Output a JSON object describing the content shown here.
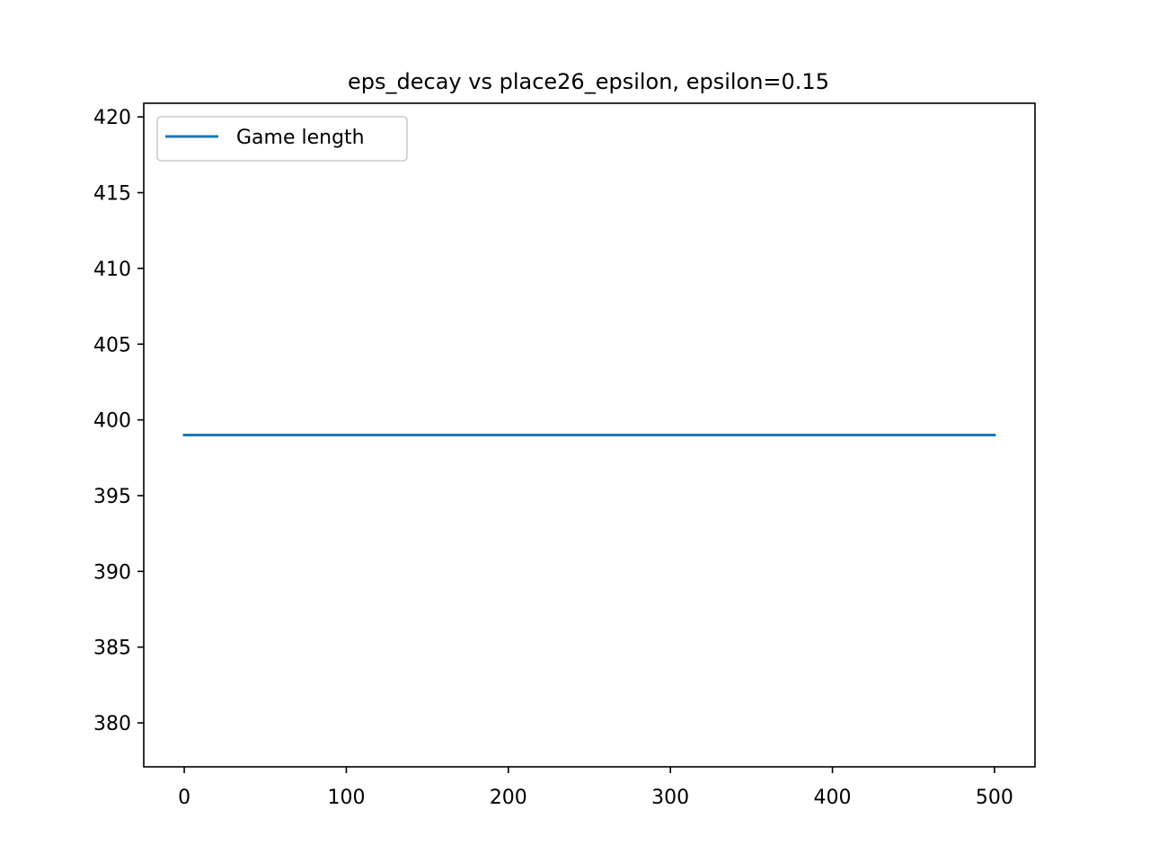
{
  "chart_data": {
    "type": "line",
    "title": "eps_decay vs place26_epsilon, epsilon=0.15",
    "xlabel": "",
    "ylabel": "",
    "xlim": [
      -25,
      525
    ],
    "ylim": [
      377.1,
      420.9
    ],
    "xticks": [
      0,
      100,
      200,
      300,
      400,
      500
    ],
    "yticks": [
      380,
      385,
      390,
      395,
      400,
      405,
      410,
      415,
      420
    ],
    "grid": false,
    "legend_position": "upper-left",
    "series": [
      {
        "name": "Game length",
        "color": "#1f77b4",
        "x": [
          0,
          500
        ],
        "y": [
          399,
          399
        ]
      }
    ]
  }
}
